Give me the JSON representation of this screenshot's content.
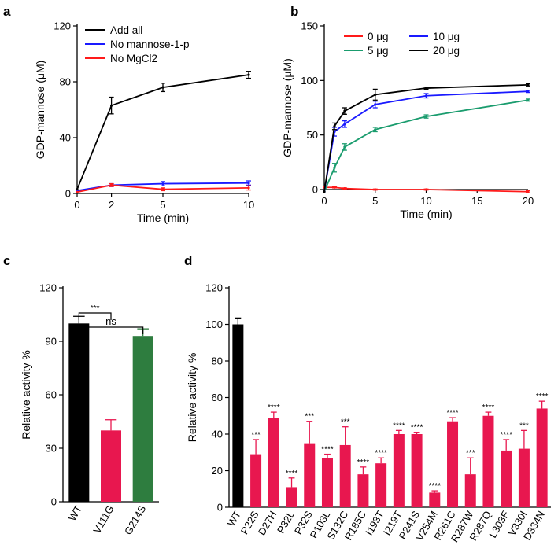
{
  "panels": {
    "a": "a",
    "b": "b",
    "c": "c",
    "d": "d"
  },
  "chart_data": [
    {
      "panel": "a",
      "type": "line",
      "xlabel": "Time (min)",
      "ylabel": "GDP-mannose (μM)",
      "xlim": [
        0,
        10
      ],
      "ylim": [
        0,
        120
      ],
      "xticks": [
        "0",
        "2",
        "5",
        "10"
      ],
      "yticks": [
        "0",
        "40",
        "80",
        "120"
      ],
      "legend_position": "top-left",
      "x": [
        0,
        2,
        5,
        10
      ],
      "series": [
        {
          "name": "Add all",
          "color": "#000000",
          "values": [
            3,
            63,
            76,
            85
          ],
          "err": [
            0,
            6,
            3,
            2.5
          ]
        },
        {
          "name": "No mannose-1-p",
          "color": "#1a1aff",
          "values": [
            2,
            6,
            7,
            7.5
          ],
          "err": [
            0,
            1,
            1.5,
            1.5
          ]
        },
        {
          "name": "No MgCl2",
          "color": "#ff1a1a",
          "values": [
            1,
            6,
            3,
            4
          ],
          "err": [
            0,
            1,
            1,
            1.5
          ]
        }
      ]
    },
    {
      "panel": "b",
      "type": "line",
      "xlabel": "Time (min)",
      "ylabel": "GDP-mannose (μM)",
      "xlim": [
        0,
        20
      ],
      "ylim": [
        0,
        150
      ],
      "xticks": [
        "0",
        "5",
        "10",
        "15",
        "20"
      ],
      "yticks": [
        "0",
        "50",
        "100",
        "150"
      ],
      "legend_position": "top",
      "x": [
        0,
        1,
        2,
        5,
        10,
        20
      ],
      "series": [
        {
          "name": "0 μg",
          "color": "#ff1a1a",
          "values": [
            2,
            2,
            1,
            0,
            0,
            -2
          ],
          "err": [
            0,
            0.5,
            0.5,
            0.5,
            0.5,
            1
          ]
        },
        {
          "name": "5 μg",
          "color": "#1a9c6e",
          "values": [
            -2,
            20,
            39,
            55,
            67,
            82
          ],
          "err": [
            0,
            4,
            3,
            2,
            1.5,
            1
          ]
        },
        {
          "name": "10 μg",
          "color": "#1a1aff",
          "values": [
            -2,
            53,
            60,
            78,
            86,
            90
          ],
          "err": [
            0,
            4,
            3,
            3,
            2,
            1
          ]
        },
        {
          "name": "20 μg",
          "color": "#000000",
          "values": [
            -2,
            58,
            72,
            87,
            93,
            96
          ],
          "err": [
            0,
            3,
            3,
            5,
            1,
            1
          ]
        }
      ]
    },
    {
      "panel": "c",
      "type": "bar",
      "ylabel": "Relative activity %",
      "ylim": [
        0,
        120
      ],
      "yticks": [
        "0",
        "30",
        "60",
        "90",
        "120"
      ],
      "categories": [
        "WT",
        "V111G",
        "G214S"
      ],
      "values": [
        100,
        40,
        93
      ],
      "err": [
        4,
        6,
        4
      ],
      "colors": [
        "#000000",
        "#e8174f",
        "#2e7d3f"
      ],
      "significance": [
        {
          "from": "WT",
          "to": "V111G",
          "label": "***"
        },
        {
          "from": "WT",
          "to": "G214S",
          "label": "ns"
        }
      ]
    },
    {
      "panel": "d",
      "type": "bar",
      "ylabel": "Relative activity %",
      "ylim": [
        0,
        120
      ],
      "yticks": [
        "0",
        "20",
        "40",
        "60",
        "80",
        "100",
        "120"
      ],
      "categories": [
        "WT",
        "P22S",
        "D27H",
        "P32L",
        "P32S",
        "P103L",
        "S132C",
        "R185C",
        "I193T",
        "I219T",
        "P241S",
        "V254M",
        "R261C",
        "R287W",
        "R287Q",
        "L303F",
        "V330I",
        "D334N"
      ],
      "values": [
        100,
        29,
        49,
        11,
        35,
        27,
        34,
        18,
        24,
        40,
        40,
        8,
        47,
        18,
        50,
        31,
        32,
        54
      ],
      "err": [
        3.5,
        8,
        3,
        5,
        12,
        2,
        10,
        4,
        3,
        2,
        1,
        1,
        2,
        9,
        2,
        6,
        10,
        4
      ],
      "colors": [
        "#000000",
        "#e8174f",
        "#e8174f",
        "#e8174f",
        "#e8174f",
        "#e8174f",
        "#e8174f",
        "#e8174f",
        "#e8174f",
        "#e8174f",
        "#e8174f",
        "#e8174f",
        "#e8174f",
        "#e8174f",
        "#e8174f",
        "#e8174f",
        "#e8174f",
        "#e8174f"
      ],
      "significance": [
        "",
        "***",
        "****",
        "****",
        "***",
        "****",
        "***",
        "****",
        "****",
        "****",
        "****",
        "****",
        "****",
        "***",
        "****",
        "****",
        "***",
        "****"
      ]
    }
  ]
}
